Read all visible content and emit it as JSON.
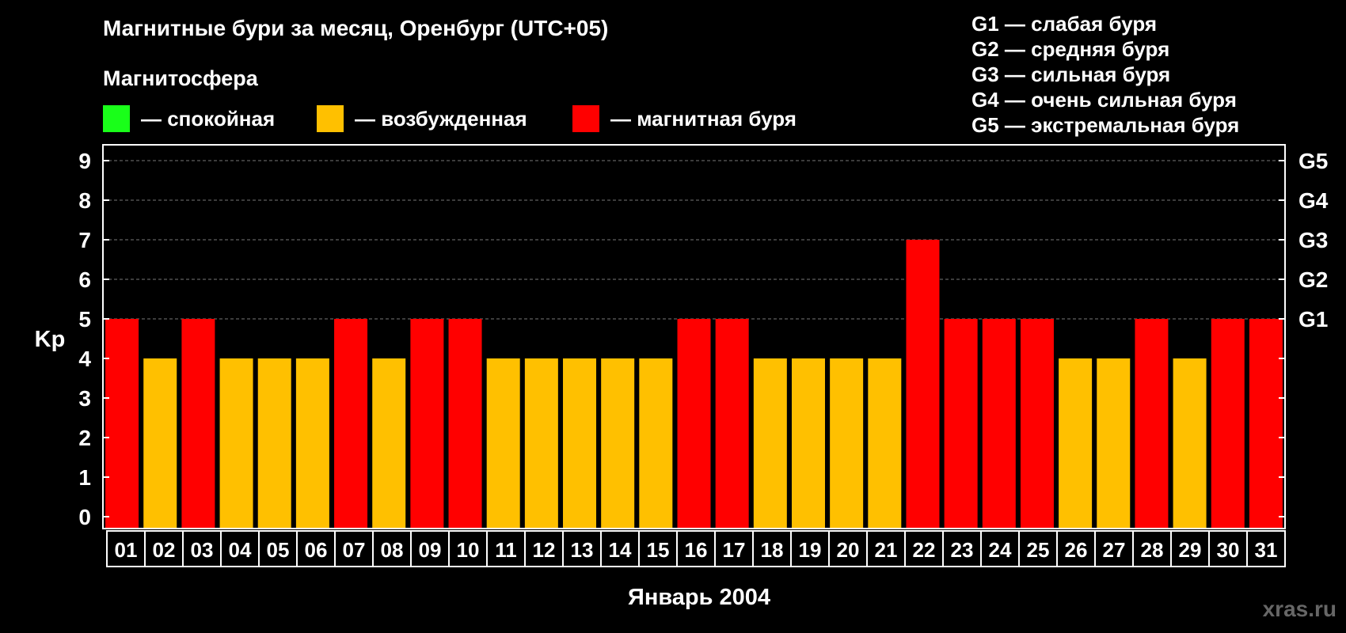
{
  "title": "Магнитные бури за месяц, Оренбург (UTC+05)",
  "magnetosphere_label": "Магнитосфера",
  "legend": [
    {
      "label": "— спокойная",
      "color": "#19FF19"
    },
    {
      "label": "— возбужденная",
      "color": "#FFC000"
    },
    {
      "label": "— магнитная буря",
      "color": "#FF0000"
    }
  ],
  "storm_scale": [
    "G1 — слабая буря",
    "G2 — средняя буря",
    "G3 — сильная буря",
    "G4 — очень сильная буря",
    "G5 — экстремальная буря"
  ],
  "watermark": "xras.ru",
  "chart_data": {
    "type": "bar",
    "ylabel": "Kp",
    "xlabel": "Январь 2004",
    "ylim": [
      0,
      9
    ],
    "yticks": [
      0,
      1,
      2,
      3,
      4,
      5,
      6,
      7,
      8,
      9
    ],
    "right_axis_labels": [
      {
        "value": 5,
        "label": "G1"
      },
      {
        "value": 6,
        "label": "G2"
      },
      {
        "value": 7,
        "label": "G3"
      },
      {
        "value": 8,
        "label": "G4"
      },
      {
        "value": 9,
        "label": "G5"
      }
    ],
    "grid": true,
    "categories": [
      "01",
      "02",
      "03",
      "04",
      "05",
      "06",
      "07",
      "08",
      "09",
      "10",
      "11",
      "12",
      "13",
      "14",
      "15",
      "16",
      "17",
      "18",
      "19",
      "20",
      "21",
      "22",
      "23",
      "24",
      "25",
      "26",
      "27",
      "28",
      "29",
      "30",
      "31"
    ],
    "values": [
      5,
      4,
      5,
      4,
      4,
      4,
      5,
      4,
      5,
      5,
      4,
      4,
      4,
      4,
      4,
      5,
      5,
      4,
      4,
      4,
      4,
      7,
      5,
      5,
      5,
      4,
      4,
      5,
      4,
      5,
      5
    ],
    "colors": {
      "4": "#FFC000",
      "5": "#FF0000",
      "6": "#FF0000",
      "7": "#FF0000",
      "8": "#FF0000",
      "9": "#FF0000",
      "default": "#19FF19"
    }
  }
}
